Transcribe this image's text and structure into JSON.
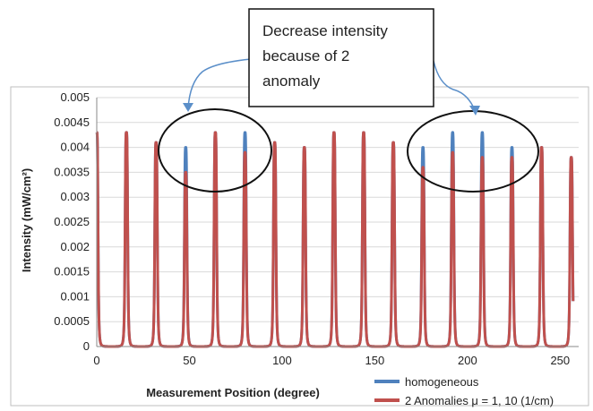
{
  "chart_data": {
    "type": "line",
    "title": "",
    "xlabel": "Measurement Position (degree)",
    "ylabel": "Intensity (mW/cm²)",
    "xlim": [
      0,
      260
    ],
    "ylim": [
      0,
      0.005
    ],
    "x_ticks": [
      0,
      50,
      100,
      150,
      200,
      250
    ],
    "x_tick_labels": [
      "0",
      "50",
      "100",
      "150",
      "200",
      "250"
    ],
    "y_ticks": [
      0,
      0.0005,
      0.001,
      0.0015,
      0.002,
      0.0025,
      0.003,
      0.0035,
      0.004,
      0.0045,
      0.005
    ],
    "y_tick_labels": [
      "0",
      "0.0005",
      "0.001",
      "0.0015",
      "0.002",
      "0.0025",
      "0.003",
      "0.0035",
      "0.004",
      "0.0045",
      "0.005"
    ],
    "grid": "horizontal",
    "legend_position": "bottom-right",
    "series": [
      {
        "name": "homogeneous",
        "color": "#4f81bd",
        "peak_x": [
          0,
          16,
          32,
          48,
          64,
          80,
          96,
          112,
          128,
          144,
          160,
          176,
          192,
          208,
          224,
          240,
          256
        ],
        "peak_y": [
          0.0043,
          0.0043,
          0.0041,
          0.004,
          0.0043,
          0.0043,
          0.0041,
          0.004,
          0.0043,
          0.0043,
          0.0041,
          0.004,
          0.0043,
          0.0043,
          0.004,
          0.004,
          0.0038
        ]
      },
      {
        "name": "2 Anomalies μ = 1, 10 (1/cm)",
        "color": "#c0504d",
        "peak_x": [
          0,
          16,
          32,
          48,
          64,
          80,
          96,
          112,
          128,
          144,
          160,
          176,
          192,
          208,
          224,
          240,
          256
        ],
        "peak_y": [
          0.0043,
          0.0043,
          0.0041,
          0.0035,
          0.0043,
          0.0039,
          0.0041,
          0.004,
          0.0043,
          0.0043,
          0.0041,
          0.0036,
          0.0039,
          0.0038,
          0.0038,
          0.004,
          0.0038
        ]
      }
    ],
    "annotations": [
      {
        "text_lines": [
          "Decrease intensity",
          "because of 2",
          "anomaly"
        ]
      }
    ]
  }
}
